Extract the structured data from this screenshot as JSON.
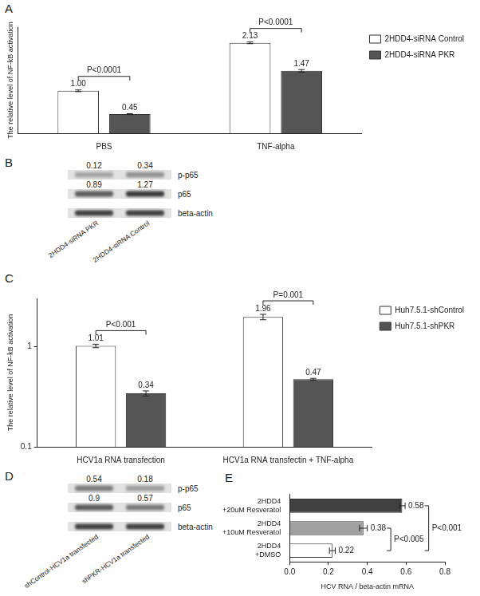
{
  "chart_data": [
    {
      "title": "A",
      "type": "bar",
      "categories": [
        "PBS",
        "TNF-alpha"
      ],
      "series": [
        {
          "name": "2HDD4-siRNA Control",
          "color": "#ffffff",
          "values": [
            1.0,
            2.13
          ],
          "value_labels": [
            "1.00",
            "2.13"
          ],
          "errors": [
            0.02,
            0.02
          ]
        },
        {
          "name": "2HDD4-siRNA PKR",
          "color": "#555555",
          "values": [
            0.45,
            1.47
          ],
          "value_labels": [
            "0.45",
            "1.47"
          ],
          "errors": [
            0.01,
            0.03
          ]
        }
      ],
      "y_label": "The relative level of NF-kB activation",
      "ylim": [
        0,
        2.5
      ],
      "tick_labels": "x",
      "grid": false,
      "legend": "top right",
      "data_labels": true,
      "annotations": [
        {
          "text": "P<0.0001",
          "category": "PBS"
        },
        {
          "text": "P<0.0001",
          "category": "TNF-alpha"
        }
      ]
    },
    {
      "title": "C",
      "type": "bar",
      "categories": [
        "HCV1a RNA transfection",
        "HCV1a RNA transfectin + TNF-alpha"
      ],
      "series": [
        {
          "name": "Huh7.5.1-shControl",
          "color": "#ffffff",
          "values": [
            1.01,
            1.96
          ],
          "errors": [
            0.04,
            0.12
          ]
        },
        {
          "name": "Huh7.5.1-shPKR",
          "color": "#555555",
          "values": [
            0.34,
            0.47
          ],
          "errors": [
            0.02,
            0.01
          ]
        }
      ],
      "y_label": "The relative level of NF-kB activation",
      "log": "y",
      "ylim": [
        0.1,
        3
      ],
      "yticks": [
        0.1,
        1
      ],
      "grid": false,
      "legend": "top right",
      "data_labels": true,
      "annotations": [
        {
          "text": "P<0.001",
          "category": "HCV1a RNA transfection"
        },
        {
          "text": "P=0.001",
          "category": "HCV1a RNA transfectin + TNF-alpha"
        }
      ]
    },
    {
      "title": "E",
      "type": "bar",
      "orientation": "horizontal",
      "categories": [
        [
          "2HDD4",
          "+20uM Resveratol"
        ],
        [
          "2HDD4",
          "+10uM Resveratol"
        ],
        [
          "2HDD4",
          "+DMSO"
        ]
      ],
      "values": [
        0.58,
        0.38,
        0.22
      ],
      "errors": [
        0.015,
        0.02,
        0.015
      ],
      "colors": [
        "#404040",
        "#a0a0a0",
        "#ffffff"
      ],
      "x_label": "HCV RNA / beta-actin mRNA",
      "xlim": [
        0,
        0.8
      ],
      "xticks": [
        {
          "value": 0,
          "label": "0.0"
        },
        0.2,
        0.4,
        0.6,
        0.8
      ],
      "grid": false,
      "data_labels": true,
      "annotations": [
        {
          "text": "P<0.005",
          "between": [
            [
              "2HDD4",
              "+10uM Resveratol"
            ],
            [
              "2HDD4",
              "+DMSO"
            ]
          ]
        },
        {
          "text": "P<0.001",
          "between": [
            [
              "2HDD4",
              "+20uM Resveratol"
            ],
            [
              "2HDD4",
              "+DMSO"
            ]
          ]
        }
      ]
    }
  ],
  "blots": [
    {
      "title": "B",
      "lanes": [
        "2HDD4-siRNA PKR",
        "2HDD4-siRNA Control"
      ],
      "rows": [
        {
          "name": "p-p65",
          "values": [
            0.12,
            0.34
          ]
        },
        {
          "name": "p65",
          "values": [
            0.89,
            1.27
          ]
        },
        {
          "name": "beta-actin"
        }
      ]
    },
    {
      "title": "D",
      "lanes": [
        "shControl-HCV1a transfected",
        "shPKR-HCV1a transfected"
      ],
      "rows": [
        {
          "name": "p-p65",
          "values": [
            0.54,
            0.18
          ]
        },
        {
          "name": "p65",
          "values": [
            0.9,
            0.57
          ]
        },
        {
          "name": "beta-actin"
        }
      ]
    }
  ]
}
